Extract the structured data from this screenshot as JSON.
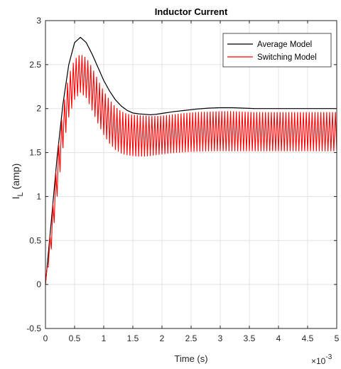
{
  "chart_data": {
    "type": "line",
    "title": "Inductor Current",
    "xlabel": "Time (s)",
    "ylabel_main": "I",
    "ylabel_sub": "L",
    "ylabel_rest": " (amp)",
    "x_exponent_base": "×10",
    "x_exponent": "-3",
    "xlim": [
      0,
      5
    ],
    "ylim": [
      -0.5,
      3
    ],
    "x_ticks": [
      0,
      0.5,
      1,
      1.5,
      2,
      2.5,
      3,
      3.5,
      4,
      4.5,
      5
    ],
    "x_tick_labels": [
      "0",
      "0.5",
      "1",
      "1.5",
      "2",
      "2.5",
      "3",
      "3.5",
      "4",
      "4.5",
      "5"
    ],
    "y_ticks": [
      -0.5,
      0,
      0.5,
      1,
      1.5,
      2,
      2.5,
      3
    ],
    "y_tick_labels": [
      "-0.5",
      "0",
      "0.5",
      "1",
      "1.5",
      "2",
      "2.5",
      "3"
    ],
    "grid": true,
    "legend_position": "top-right",
    "series": [
      {
        "name": "Average Model",
        "color": "#000000",
        "x": [
          0,
          0.1,
          0.2,
          0.3,
          0.4,
          0.5,
          0.6,
          0.7,
          0.8,
          0.9,
          1.0,
          1.1,
          1.2,
          1.3,
          1.4,
          1.5,
          1.6,
          1.7,
          1.8,
          1.9,
          2.0,
          2.2,
          2.4,
          2.6,
          2.8,
          3.0,
          3.2,
          3.4,
          3.6,
          3.8,
          4.0,
          4.5,
          5.0
        ],
        "y": [
          0,
          0.72,
          1.45,
          2.05,
          2.5,
          2.75,
          2.81,
          2.75,
          2.62,
          2.47,
          2.32,
          2.2,
          2.1,
          2.03,
          1.98,
          1.95,
          1.94,
          1.935,
          1.93,
          1.935,
          1.945,
          1.965,
          1.98,
          1.995,
          2.005,
          2.01,
          2.01,
          2.005,
          2.0,
          2.0,
          2.0,
          2.0,
          2.0
        ]
      },
      {
        "name": "Switching Model",
        "color": "#ff0000",
        "x": [
          0,
          0.1,
          0.2,
          0.3,
          0.4,
          0.5,
          0.6,
          0.7,
          0.8,
          0.9,
          1.0,
          1.1,
          1.2,
          1.3,
          1.4,
          1.5,
          1.6,
          1.7,
          1.8,
          1.9,
          2.0,
          2.2,
          2.4,
          2.6,
          2.8,
          3.0,
          3.2,
          3.4,
          3.6,
          3.8,
          4.0,
          4.5,
          5.0
        ],
        "upper": [
          0,
          0.72,
          1.45,
          2.0,
          2.38,
          2.56,
          2.62,
          2.58,
          2.47,
          2.33,
          2.2,
          2.1,
          2.02,
          1.97,
          1.94,
          1.93,
          1.925,
          1.92,
          1.915,
          1.915,
          1.92,
          1.935,
          1.95,
          1.96,
          1.965,
          1.97,
          1.97,
          1.965,
          1.96,
          1.96,
          1.96,
          1.96,
          1.96
        ],
        "lower": [
          0,
          0.4,
          1.0,
          1.55,
          1.9,
          2.1,
          2.18,
          2.12,
          1.98,
          1.83,
          1.7,
          1.6,
          1.53,
          1.49,
          1.47,
          1.46,
          1.455,
          1.455,
          1.46,
          1.47,
          1.48,
          1.495,
          1.505,
          1.51,
          1.515,
          1.515,
          1.515,
          1.515,
          1.515,
          1.515,
          1.515,
          1.515,
          1.515
        ],
        "oscillation_period": 0.05
      }
    ]
  }
}
